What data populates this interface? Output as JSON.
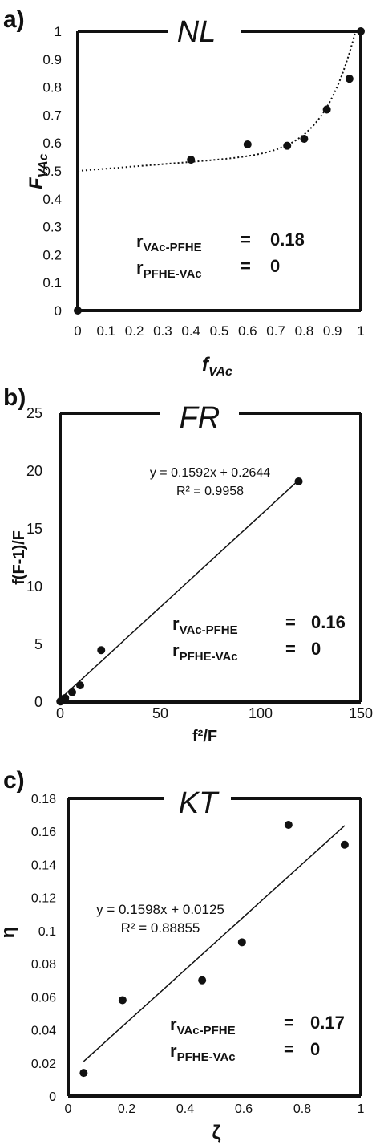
{
  "chart_data": [
    {
      "type": "scatter",
      "panel_label": "a)",
      "title": "NL",
      "xlabel_main": "f",
      "xlabel_sub": "VAc",
      "ylabel_main": "F",
      "ylabel_sub": "VAc",
      "xlim": [
        0,
        1
      ],
      "ylim": [
        0,
        1
      ],
      "xticks": [
        "0",
        "0.1",
        "0.2",
        "0.3",
        "0.4",
        "0.5",
        "0.6",
        "0.7",
        "0.8",
        "0.9",
        "1"
      ],
      "yticks": [
        "0",
        "0.1",
        "0.2",
        "0.3",
        "0.4",
        "0.5",
        "0.6",
        "0.7",
        "0.8",
        "0.9",
        "1"
      ],
      "points": [
        [
          0,
          0
        ],
        [
          0.4,
          0.54
        ],
        [
          0.6,
          0.595
        ],
        [
          0.74,
          0.59
        ],
        [
          0.8,
          0.615
        ],
        [
          0.88,
          0.72
        ],
        [
          0.96,
          0.83
        ],
        [
          1,
          1
        ]
      ],
      "fit_curve": "dotted",
      "ratios": [
        {
          "main": "r",
          "sub": "VAc-PFHE",
          "eq": "=",
          "value": "0.18"
        },
        {
          "main": "r",
          "sub": "PFHE-VAc",
          "eq": "=",
          "value": "0"
        }
      ]
    },
    {
      "type": "scatter",
      "panel_label": "b)",
      "title": "FR",
      "xlabel": "f²/F",
      "ylabel": "f(F-1)/F",
      "xlim": [
        0,
        150
      ],
      "ylim": [
        0,
        25
      ],
      "xticks": [
        "0",
        "50",
        "100",
        "150"
      ],
      "yticks": [
        "0",
        "5",
        "10",
        "15",
        "20",
        "25"
      ],
      "points": [
        [
          0.1,
          0.05
        ],
        [
          0.5,
          0.1
        ],
        [
          1.0,
          0.25
        ],
        [
          2.5,
          0.35
        ],
        [
          6,
          0.85
        ],
        [
          10,
          1.45
        ],
        [
          20.5,
          4.5
        ],
        [
          119,
          19.1
        ]
      ],
      "trendline": {
        "slope": 0.1592,
        "intercept": 0.2644,
        "x_range": [
          0,
          119
        ]
      },
      "equation": "y = 0.1592x + 0.2644",
      "r_squared": "R² = 0.9958",
      "ratios": [
        {
          "main": "r",
          "sub": "VAc-PFHE",
          "eq": "=",
          "value": "0.16"
        },
        {
          "main": "r",
          "sub": "PFHE-VAc",
          "eq": "=",
          "value": "0"
        }
      ]
    },
    {
      "type": "scatter",
      "panel_label": "c)",
      "title": "KT",
      "xlabel": "ζ",
      "ylabel": "η",
      "xlim": [
        0,
        1
      ],
      "ylim": [
        0,
        0.18
      ],
      "xticks": [
        "0",
        "0.2",
        "0.4",
        "0.6",
        "0.8",
        "1"
      ],
      "yticks": [
        "0",
        "0.02",
        "0.04",
        "0.06",
        "0.08",
        "0.1",
        "0.12",
        "0.14",
        "0.16",
        "0.18"
      ],
      "points": [
        [
          0.053,
          0.014
        ],
        [
          0.186,
          0.058
        ],
        [
          0.458,
          0.07
        ],
        [
          0.594,
          0.093
        ],
        [
          0.753,
          0.164
        ],
        [
          0.945,
          0.152
        ]
      ],
      "trendline": {
        "slope": 0.1598,
        "intercept": 0.0125,
        "x_range": [
          0.053,
          0.945
        ]
      },
      "equation": "y = 0.1598x + 0.0125",
      "r_squared": "R² = 0.88855",
      "ratios": [
        {
          "main": "r",
          "sub": "VAc-PFHE",
          "eq": "=",
          "value": "0.17"
        },
        {
          "main": "r",
          "sub": "PFHE-VAc",
          "eq": "=",
          "value": "0"
        }
      ]
    }
  ]
}
